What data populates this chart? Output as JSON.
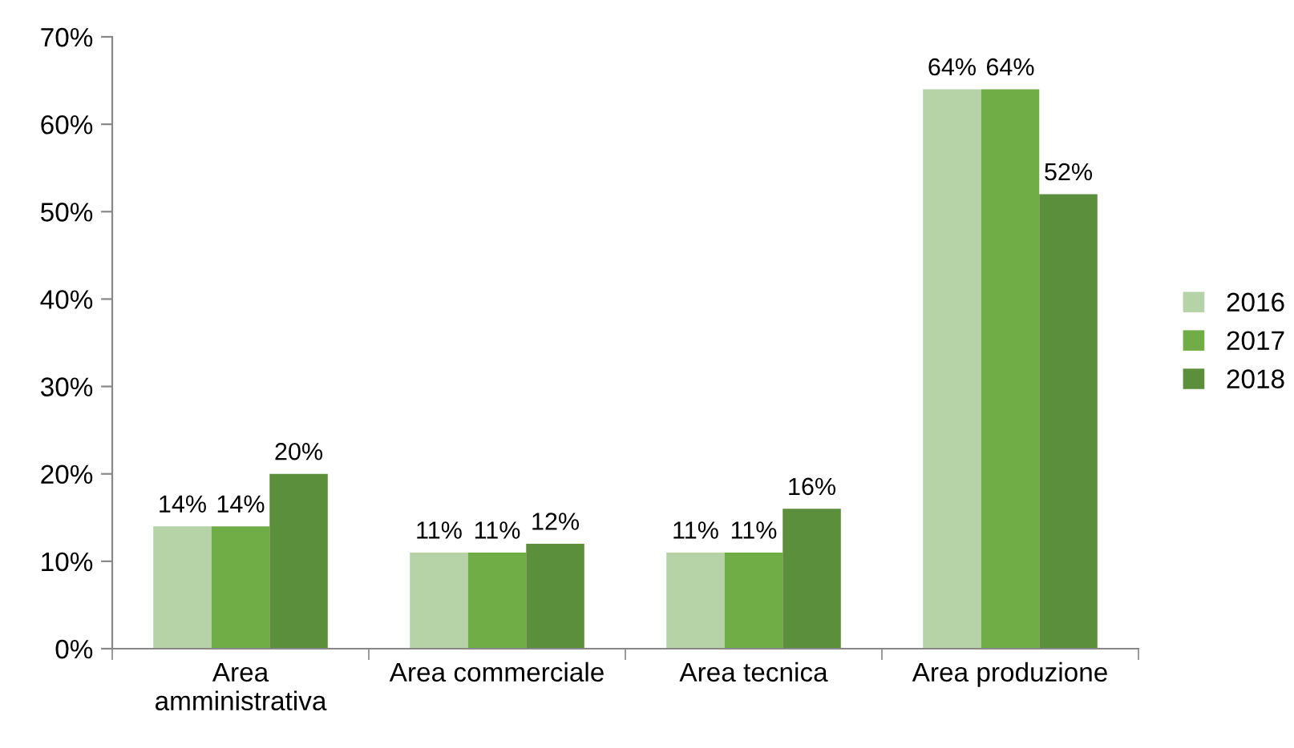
{
  "chart_data": {
    "type": "bar",
    "categories": [
      "Area\namministrativa",
      "Area commerciale",
      "Area tecnica",
      "Area produzione"
    ],
    "series": [
      {
        "name": "2016",
        "color": "#b5d3a7",
        "values": [
          14,
          11,
          11,
          64
        ],
        "value_labels": [
          "14%",
          "11%",
          "11%",
          "64%"
        ]
      },
      {
        "name": "2017",
        "color": "#70ad47",
        "values": [
          14,
          11,
          11,
          64
        ],
        "value_labels": [
          "14%",
          "11%",
          "11%",
          "64%"
        ]
      },
      {
        "name": "2018",
        "color": "#5b8f3b",
        "values": [
          20,
          12,
          16,
          52
        ],
        "value_labels": [
          "20%",
          "12%",
          "16%",
          "52%"
        ]
      }
    ],
    "ylim": [
      0,
      70
    ],
    "yticks": [
      {
        "value": 0,
        "label": "0%"
      },
      {
        "value": 10,
        "label": "10%"
      },
      {
        "value": 20,
        "label": "20%"
      },
      {
        "value": 30,
        "label": "30%"
      },
      {
        "value": 40,
        "label": "40%"
      },
      {
        "value": 50,
        "label": "50%"
      },
      {
        "value": 60,
        "label": "60%"
      },
      {
        "value": 70,
        "label": "70%"
      }
    ],
    "legend": "right",
    "grid": false
  }
}
